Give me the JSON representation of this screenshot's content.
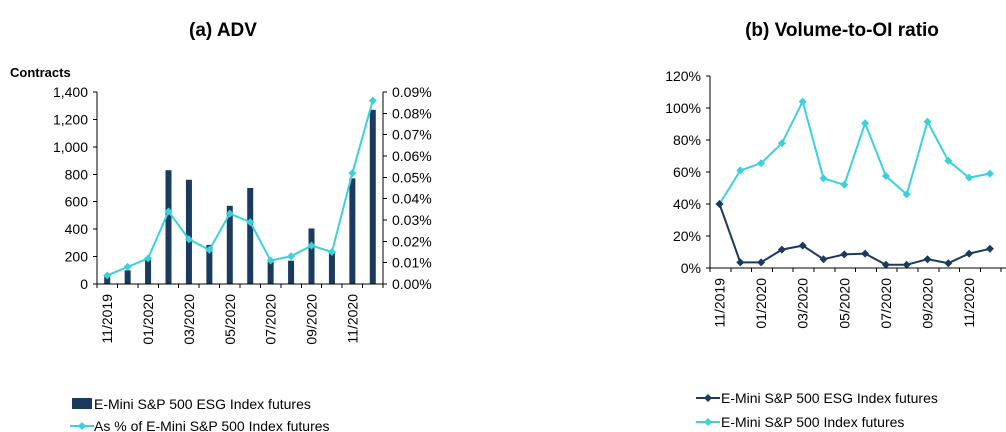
{
  "colors": {
    "dark_navy": "#1b3a5f",
    "turquoise": "#3ad1dd"
  },
  "chart_data": [
    {
      "type": "bar",
      "title": "(a)  ADV",
      "unit_label": "Contracts",
      "categories": [
        "11/2019",
        "12/2019",
        "01/2020",
        "02/2020",
        "03/2020",
        "04/2020",
        "05/2020",
        "06/2020",
        "07/2020",
        "08/2020",
        "09/2020",
        "10/2020",
        "11/2020",
        "12/2020"
      ],
      "tick_labels": [
        "11/2019",
        "01/2020",
        "03/2020",
        "05/2020",
        "07/2020",
        "09/2020",
        "11/2020"
      ],
      "ylim": [
        0,
        1400
      ],
      "y_ticks": [
        "0",
        "200",
        "400",
        "600",
        "800",
        "1,000",
        "1,200",
        "1,400"
      ],
      "y2lim": [
        0,
        0.09
      ],
      "y2_ticks": [
        "0.00%",
        "0.01%",
        "0.02%",
        "0.03%",
        "0.04%",
        "0.05%",
        "0.06%",
        "0.07%",
        "0.08%",
        "0.09%"
      ],
      "series": [
        {
          "name": "E-Mini S&P 500 ESG Index futures",
          "kind": "bar",
          "axis": "left",
          "values": [
            55,
            100,
            195,
            830,
            760,
            285,
            570,
            700,
            160,
            170,
            405,
            230,
            770,
            1270
          ]
        },
        {
          "name": "As % of E-Mini S&P 500 Index futures",
          "kind": "line",
          "axis": "right",
          "values": [
            0.004,
            0.008,
            0.012,
            0.034,
            0.021,
            0.016,
            0.033,
            0.029,
            0.011,
            0.013,
            0.018,
            0.015,
            0.052,
            0.086
          ]
        }
      ]
    },
    {
      "type": "line",
      "title": "(b)  Volume-to-OI ratio",
      "categories": [
        "11/2019",
        "12/2019",
        "01/2020",
        "02/2020",
        "03/2020",
        "04/2020",
        "05/2020",
        "06/2020",
        "07/2020",
        "08/2020",
        "09/2020",
        "10/2020",
        "11/2020",
        "12/2020"
      ],
      "tick_labels": [
        "11/2019",
        "01/2020",
        "03/2020",
        "05/2020",
        "07/2020",
        "09/2020",
        "11/2020"
      ],
      "ylim": [
        0,
        1.2
      ],
      "y_ticks": [
        "0%",
        "20%",
        "40%",
        "60%",
        "80%",
        "100%",
        "120%"
      ],
      "series": [
        {
          "name": "E-Mini S&P 500 ESG Index futures",
          "values": [
            0.4,
            0.035,
            0.035,
            0.115,
            0.14,
            0.055,
            0.085,
            0.09,
            0.02,
            0.02,
            0.055,
            0.03,
            0.09,
            0.12
          ]
        },
        {
          "name": "E-Mini S&P 500 Index futures",
          "values": [
            0.4,
            0.61,
            0.655,
            0.78,
            1.04,
            0.56,
            0.52,
            0.905,
            0.575,
            0.46,
            0.915,
            0.67,
            0.565,
            0.59
          ]
        }
      ]
    }
  ]
}
